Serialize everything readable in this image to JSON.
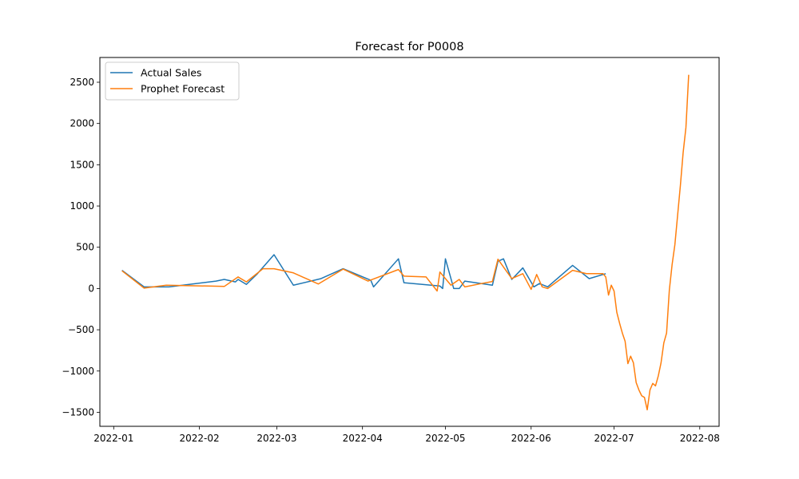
{
  "chart_data": {
    "type": "line",
    "title": "Forecast for P0008",
    "xlabel": "",
    "ylabel": "",
    "x_axis_type": "date",
    "xlim": [
      "2021-12-27",
      "2022-08-08"
    ],
    "ylim": [
      -1670,
      2800
    ],
    "x_ticks": [
      {
        "value": "2022-01-01",
        "label": "2022-01"
      },
      {
        "value": "2022-02-01",
        "label": "2022-02"
      },
      {
        "value": "2022-03-01",
        "label": "2022-03"
      },
      {
        "value": "2022-04-01",
        "label": "2022-04"
      },
      {
        "value": "2022-05-01",
        "label": "2022-05"
      },
      {
        "value": "2022-06-01",
        "label": "2022-06"
      },
      {
        "value": "2022-07-01",
        "label": "2022-07"
      },
      {
        "value": "2022-08-01",
        "label": "2022-08"
      }
    ],
    "y_ticks": [
      -1500,
      -1000,
      -500,
      0,
      500,
      1000,
      1500,
      2000,
      2500
    ],
    "grid": false,
    "legend": {
      "position": "top-left"
    },
    "series": [
      {
        "name": "Actual Sales",
        "color": "#1f77b4",
        "points": [
          [
            "2022-01-04",
            220
          ],
          [
            "2022-01-12",
            20
          ],
          [
            "2022-01-21",
            20
          ],
          [
            "2022-02-07",
            90
          ],
          [
            "2022-02-10",
            110
          ],
          [
            "2022-02-14",
            80
          ],
          [
            "2022-02-15",
            110
          ],
          [
            "2022-02-18",
            50
          ],
          [
            "2022-02-22",
            180
          ],
          [
            "2022-02-28",
            410
          ],
          [
            "2022-03-07",
            40
          ],
          [
            "2022-03-17",
            120
          ],
          [
            "2022-03-25",
            240
          ],
          [
            "2022-04-04",
            100
          ],
          [
            "2022-04-05",
            20
          ],
          [
            "2022-04-14",
            360
          ],
          [
            "2022-04-16",
            70
          ],
          [
            "2022-04-29",
            30
          ],
          [
            "2022-04-30",
            0
          ],
          [
            "2022-05-01",
            360
          ],
          [
            "2022-05-04",
            0
          ],
          [
            "2022-05-06",
            0
          ],
          [
            "2022-05-08",
            90
          ],
          [
            "2022-05-18",
            40
          ],
          [
            "2022-05-20",
            330
          ],
          [
            "2022-05-22",
            360
          ],
          [
            "2022-05-25",
            110
          ],
          [
            "2022-05-29",
            250
          ],
          [
            "2022-06-02",
            20
          ],
          [
            "2022-06-04",
            60
          ],
          [
            "2022-06-07",
            20
          ],
          [
            "2022-06-16",
            280
          ],
          [
            "2022-06-22",
            120
          ],
          [
            "2022-06-28",
            180
          ]
        ]
      },
      {
        "name": "Prophet Forecast",
        "color": "#ff7f0e",
        "points": [
          [
            "2022-01-04",
            215
          ],
          [
            "2022-01-12",
            5
          ],
          [
            "2022-01-20",
            40
          ],
          [
            "2022-02-04",
            30
          ],
          [
            "2022-02-10",
            25
          ],
          [
            "2022-02-15",
            140
          ],
          [
            "2022-02-18",
            80
          ],
          [
            "2022-02-24",
            240
          ],
          [
            "2022-02-28",
            240
          ],
          [
            "2022-03-07",
            190
          ],
          [
            "2022-03-16",
            55
          ],
          [
            "2022-03-25",
            235
          ],
          [
            "2022-04-03",
            90
          ],
          [
            "2022-04-14",
            230
          ],
          [
            "2022-04-16",
            150
          ],
          [
            "2022-04-24",
            140
          ],
          [
            "2022-04-28",
            -30
          ],
          [
            "2022-04-29",
            200
          ],
          [
            "2022-05-03",
            40
          ],
          [
            "2022-05-06",
            110
          ],
          [
            "2022-05-08",
            20
          ],
          [
            "2022-05-14",
            60
          ],
          [
            "2022-05-18",
            85
          ],
          [
            "2022-05-20",
            355
          ],
          [
            "2022-05-25",
            120
          ],
          [
            "2022-05-29",
            180
          ],
          [
            "2022-06-01",
            -10
          ],
          [
            "2022-06-03",
            170
          ],
          [
            "2022-06-05",
            20
          ],
          [
            "2022-06-07",
            0
          ],
          [
            "2022-06-16",
            220
          ],
          [
            "2022-06-21",
            180
          ],
          [
            "2022-06-27",
            180
          ],
          [
            "2022-06-28",
            140
          ],
          [
            "2022-06-29",
            -80
          ],
          [
            "2022-06-30",
            40
          ],
          [
            "2022-07-01",
            -30
          ],
          [
            "2022-07-02",
            -290
          ],
          [
            "2022-07-03",
            -420
          ],
          [
            "2022-07-04",
            -540
          ],
          [
            "2022-07-05",
            -640
          ],
          [
            "2022-07-06",
            -910
          ],
          [
            "2022-07-07",
            -820
          ],
          [
            "2022-07-08",
            -900
          ],
          [
            "2022-07-09",
            -1140
          ],
          [
            "2022-07-10",
            -1230
          ],
          [
            "2022-07-11",
            -1300
          ],
          [
            "2022-07-12",
            -1320
          ],
          [
            "2022-07-13",
            -1470
          ],
          [
            "2022-07-14",
            -1230
          ],
          [
            "2022-07-15",
            -1150
          ],
          [
            "2022-07-16",
            -1180
          ],
          [
            "2022-07-17",
            -1060
          ],
          [
            "2022-07-18",
            -900
          ],
          [
            "2022-07-19",
            -660
          ],
          [
            "2022-07-20",
            -540
          ],
          [
            "2022-07-21",
            -20
          ],
          [
            "2022-07-22",
            290
          ],
          [
            "2022-07-23",
            530
          ],
          [
            "2022-07-24",
            890
          ],
          [
            "2022-07-25",
            1250
          ],
          [
            "2022-07-26",
            1650
          ],
          [
            "2022-07-27",
            1950
          ],
          [
            "2022-07-28",
            2590
          ]
        ]
      }
    ]
  }
}
